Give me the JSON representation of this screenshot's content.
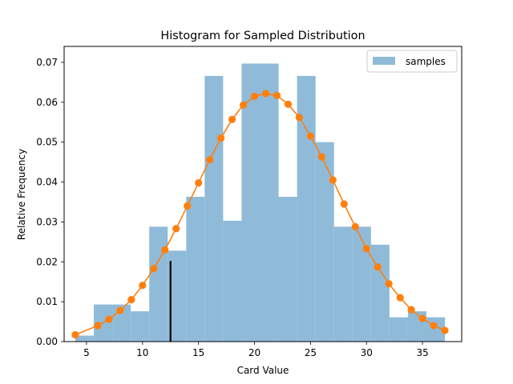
{
  "chart_data": {
    "type": "bar",
    "title": "Histogram for Sampled Distribution",
    "xlabel": "Card Value",
    "ylabel": "Relative Frequency",
    "xlim": [
      3,
      38.5
    ],
    "ylim": [
      0,
      0.074
    ],
    "xticks": [
      5,
      10,
      15,
      20,
      25,
      30,
      35
    ],
    "yticks": [
      0.0,
      0.01,
      0.02,
      0.03,
      0.04,
      0.05,
      0.06,
      0.07
    ],
    "grid": false,
    "legend": {
      "position": "top-right",
      "entries": [
        "samples"
      ]
    },
    "histogram": {
      "name": "samples",
      "color": "#8fbbd9",
      "bin_edges": [
        4.0,
        5.65,
        7.3,
        8.95,
        10.6,
        12.25,
        13.9,
        15.55,
        17.2,
        18.85,
        20.5,
        22.15,
        23.8,
        25.45,
        27.1,
        28.75,
        30.4,
        32.05,
        33.7,
        35.35,
        37.0
      ],
      "values": [
        0.0015,
        0.0093,
        0.0093,
        0.0076,
        0.0288,
        0.0228,
        0.0363,
        0.0666,
        0.0303,
        0.0697,
        0.0697,
        0.0363,
        0.0666,
        0.05,
        0.0288,
        0.0288,
        0.0243,
        0.0061,
        0.0076,
        0.0061
      ]
    },
    "line": {
      "color": "#ff7f0e",
      "x": [
        4,
        6,
        7,
        8,
        9,
        10,
        11,
        12,
        13,
        14,
        15,
        16,
        17,
        18,
        19,
        20,
        21,
        22,
        23,
        24,
        25,
        26,
        27,
        28,
        29,
        30,
        31,
        32,
        33,
        34,
        35,
        36,
        37
      ],
      "y": [
        0.0017,
        0.004,
        0.0056,
        0.0078,
        0.0105,
        0.0141,
        0.0183,
        0.023,
        0.0283,
        0.034,
        0.0398,
        0.0456,
        0.051,
        0.0557,
        0.0593,
        0.0615,
        0.0622,
        0.0617,
        0.0595,
        0.0562,
        0.0515,
        0.0463,
        0.0405,
        0.0345,
        0.0288,
        0.0233,
        0.0187,
        0.0145,
        0.011,
        0.008,
        0.0058,
        0.004,
        0.0028
      ]
    },
    "marker_line": {
      "x": 12.5,
      "y": 0.0202,
      "color": "#000000"
    }
  }
}
